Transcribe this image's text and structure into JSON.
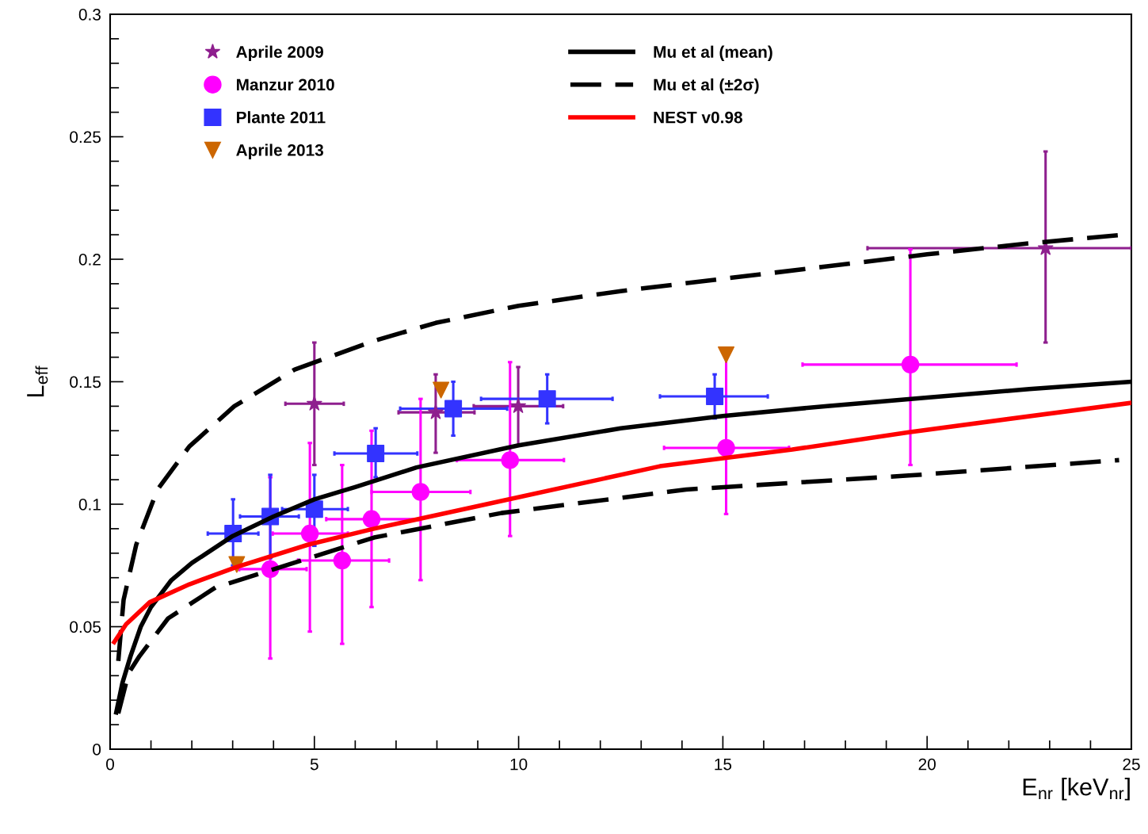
{
  "chart_data": {
    "type": "scatter",
    "xlabel": "E$_{nr}$ [keV$_{nr}$]",
    "ylabel": "L$_{eff}$",
    "xlim": [
      0,
      25
    ],
    "ylim": [
      0,
      0.3
    ],
    "xticks": [
      0,
      {
        "value": 1,
        "label": null
      },
      {
        "value": 2,
        "label": null
      },
      {
        "value": 3,
        "label": null
      },
      {
        "value": 4,
        "label": null
      },
      5,
      {
        "value": 6,
        "label": null
      },
      {
        "value": 7,
        "label": null
      },
      {
        "value": 8,
        "label": null
      },
      {
        "value": 9,
        "label": null
      },
      10,
      {
        "value": 11,
        "label": null
      },
      {
        "value": 12,
        "label": null
      },
      {
        "value": 13,
        "label": null
      },
      {
        "value": 14,
        "label": null
      },
      15,
      {
        "value": 16,
        "label": null
      },
      {
        "value": 17,
        "label": null
      },
      {
        "value": 18,
        "label": null
      },
      {
        "value": 19,
        "label": null
      },
      20,
      {
        "value": 21,
        "label": null
      },
      {
        "value": 22,
        "label": null
      },
      {
        "value": 23,
        "label": null
      },
      {
        "value": 24,
        "label": null
      },
      25
    ],
    "yticks": [
      0,
      {
        "value": 0.01,
        "label": null
      },
      {
        "value": 0.02,
        "label": null
      },
      {
        "value": 0.03,
        "label": null
      },
      {
        "value": 0.04,
        "label": null
      },
      0.05,
      {
        "value": 0.06,
        "label": null
      },
      {
        "value": 0.07,
        "label": null
      },
      {
        "value": 0.08,
        "label": null
      },
      {
        "value": 0.09,
        "label": null
      },
      0.1,
      {
        "value": 0.11,
        "label": null
      },
      {
        "value": 0.12,
        "label": null
      },
      {
        "value": 0.13,
        "label": null
      },
      {
        "value": 0.14,
        "label": null
      },
      0.15,
      {
        "value": 0.16,
        "label": null
      },
      {
        "value": 0.17,
        "label": null
      },
      {
        "value": 0.18,
        "label": null
      },
      {
        "value": 0.19,
        "label": null
      },
      0.2,
      {
        "value": 0.21,
        "label": null
      },
      {
        "value": 0.22,
        "label": null
      },
      {
        "value": 0.23,
        "label": null
      },
      {
        "value": 0.24,
        "label": null
      },
      0.25,
      {
        "value": 0.26,
        "label": null
      },
      {
        "value": 0.27,
        "label": null
      },
      {
        "value": 0.28,
        "label": null
      },
      {
        "value": 0.29,
        "label": null
      },
      0.3
    ],
    "grid": false,
    "legend": "top left",
    "series": [
      {
        "name": "Aprile 2009",
        "marker": "star",
        "color": "#8e1f8e",
        "x": [
          5.0,
          7.97,
          9.99,
          22.9
        ],
        "values": [
          0.141,
          0.1375,
          0.14,
          0.2045
        ],
        "errors": [
          [
            0.116,
            0.166
          ],
          [
            0.121,
            0.153
          ],
          [
            0.124,
            0.156
          ],
          [
            0.166,
            0.244
          ]
        ],
        "xerrors": [
          [
            4.29,
            5.72
          ],
          [
            7.06,
            8.92
          ],
          [
            8.9,
            11.09
          ],
          [
            18.54,
            25
          ]
        ]
      },
      {
        "name": "Manzur 2010",
        "marker": "circle",
        "color": "#ff00ff",
        "x": [
          3.92,
          4.89,
          5.68,
          6.4,
          7.6,
          9.79,
          15.08,
          19.59
        ],
        "values": [
          0.0735,
          0.088,
          0.077,
          0.0939,
          0.105,
          0.118,
          0.123,
          0.157
        ],
        "errors": [
          [
            0.037,
            0.111
          ],
          [
            0.048,
            0.125
          ],
          [
            0.043,
            0.116
          ],
          [
            0.058,
            0.13
          ],
          [
            0.069,
            0.143
          ],
          [
            0.087,
            0.158
          ],
          [
            0.096,
            0.16
          ],
          [
            0.116,
            0.204
          ]
        ],
        "xerrors": [
          [
            3.16,
            4.81
          ],
          [
            3.98,
            5.82
          ],
          [
            4.6,
            6.83
          ],
          [
            5.29,
            7.56
          ],
          [
            6.4,
            8.82
          ],
          [
            8.49,
            11.11
          ],
          [
            13.56,
            16.62
          ],
          [
            16.95,
            22.19
          ]
        ]
      },
      {
        "name": "Plante 2011",
        "marker": "square",
        "color": "#3333ff",
        "x": [
          3.01,
          3.92,
          5.0,
          6.5,
          8.4,
          10.7,
          14.8
        ],
        "values": [
          0.088,
          0.095,
          0.098,
          0.1207,
          0.139,
          0.143,
          0.144
        ],
        "errors": [
          [
            0.075,
            0.102
          ],
          [
            0.078,
            0.112
          ],
          [
            0.083,
            0.112
          ],
          [
            0.111,
            0.131
          ],
          [
            0.128,
            0.15
          ],
          [
            0.133,
            0.153
          ],
          [
            0.135,
            0.153
          ]
        ],
        "xerrors": [
          [
            2.39,
            3.63
          ],
          [
            3.18,
            4.62
          ],
          [
            4.21,
            5.82
          ],
          [
            5.49,
            7.52
          ],
          [
            7.1,
            9.72
          ],
          [
            9.08,
            12.3
          ],
          [
            13.46,
            16.1
          ]
        ]
      },
      {
        "name": "Aprile 2013",
        "marker": "triangle",
        "color": "#cc6600",
        "x": [
          3.1,
          8.1,
          15.08
        ],
        "values": [
          0.0754,
          0.1466,
          0.161
        ]
      },
      {
        "name": "Mu et al (mean)",
        "type": "line",
        "line_style": "solid",
        "color": "#000000",
        "x": [
          0.15,
          0.3,
          0.5,
          0.75,
          1,
          1.5,
          2,
          3,
          4,
          5,
          6,
          7.5,
          10,
          12.5,
          15,
          17.5,
          20,
          22.5,
          25
        ],
        "values": [
          0.015,
          0.027,
          0.038,
          0.05,
          0.058,
          0.069,
          0.076,
          0.087,
          0.095,
          0.102,
          0.107,
          0.115,
          0.124,
          0.131,
          0.136,
          0.14,
          0.1435,
          0.147,
          0.15
        ]
      },
      {
        "name": "Mu et al (±2σ)",
        "type": "line",
        "line_style": "dashed",
        "color": "#000000",
        "x": [
          0.2,
          0.33,
          0.64,
          1.16,
          1.94,
          3.04,
          4.52,
          6.46,
          7.97,
          10,
          12.5,
          15,
          17.5,
          20,
          22.5,
          25
        ],
        "values": [
          0.036,
          0.061,
          0.0835,
          0.106,
          0.1236,
          0.14,
          0.155,
          0.1667,
          0.174,
          0.181,
          0.187,
          0.192,
          0.197,
          0.202,
          0.2065,
          0.2103
        ]
      },
      {
        "type": "line",
        "line_style": "dashed",
        "color": "#000000",
        "x": [
          0.2,
          0.45,
          0.72,
          1.42,
          2.58,
          3.88,
          6.46,
          9.58,
          14.1,
          19.55,
          24.7
        ],
        "values": [
          0.0146,
          0.031,
          0.038,
          0.0534,
          0.066,
          0.0728,
          0.0864,
          0.0964,
          0.106,
          0.1117,
          0.118
        ]
      },
      {
        "name": "NEST v0.98",
        "type": "line",
        "line_style": "solid",
        "color": "#ff0000",
        "x": [
          0.1,
          0.39,
          0.97,
          1.94,
          3.1,
          4.85,
          6.46,
          9.77,
          13.46,
          16.7,
          19.55,
          25
        ],
        "values": [
          0.0437,
          0.051,
          0.06,
          0.0673,
          0.0744,
          0.0835,
          0.09,
          0.102,
          0.1155,
          0.1223,
          0.1294,
          0.1414
        ]
      }
    ]
  }
}
